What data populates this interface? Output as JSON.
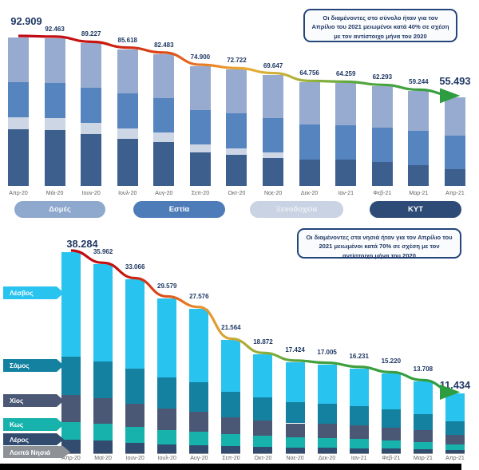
{
  "chart_data": [
    {
      "type": "bar",
      "stacked": true,
      "title": "",
      "annotation": "Οι διαμένοντες στο σύνολο ήταν για τον Απρίλιο του 2021 μειωμένοι κατά 40% σε σχέση με τον αντίστοιχο μήνα του 2020",
      "categories": [
        "Απρ-20",
        "Μάι-20",
        "Ιουν-20",
        "Ιουλ-20",
        "Αυγ-20",
        "Σεπ-20",
        "Οκτ-20",
        "Νοε-20",
        "Δεκ-20",
        "Ιαν-21",
        "Φεβ-21",
        "Μαρ-21",
        "Απρ-21"
      ],
      "totals_display": [
        "92.909",
        "92.463",
        "89.227",
        "85.618",
        "82.483",
        "74.900",
        "72.722",
        "69.647",
        "64.756",
        "64.259",
        "62.293",
        "59.244",
        "55.493"
      ],
      "series": [
        {
          "name": "ΚΥΤ",
          "color": "#3d5f8d",
          "values": [
            35409,
            34963,
            32427,
            29618,
            27283,
            21000,
            19622,
            17647,
            16456,
            16259,
            14993,
            12944,
            10493
          ]
        },
        {
          "name": "Ξενοδοχεία",
          "color": "#cdd6e5",
          "values": [
            7500,
            7500,
            7000,
            6500,
            6000,
            5000,
            4000,
            3500,
            0,
            0,
            0,
            0,
            0
          ]
        },
        {
          "name": "Εστία",
          "color": "#5584bf",
          "values": [
            22000,
            22000,
            21800,
            21700,
            21600,
            21500,
            21800,
            21500,
            21800,
            21700,
            21500,
            21300,
            21000
          ]
        },
        {
          "name": "Δομές",
          "color": "#96abcf",
          "values": [
            28000,
            28000,
            28000,
            27800,
            27600,
            27400,
            27300,
            27000,
            26500,
            26300,
            25800,
            25000,
            24000
          ]
        }
      ],
      "legend": [
        {
          "label": "Δομές",
          "bg": "#8fa8ce",
          "fg": "#f2f6fb"
        },
        {
          "label": "Εστία",
          "bg": "#4e7cb9",
          "fg": "#ffffff"
        },
        {
          "label": "Ξενοδοχεία",
          "bg": "#c9d3e3",
          "fg": "#eef1f7"
        },
        {
          "label": "ΚΥΤ",
          "bg": "#2e4b77",
          "fg": "#ffffff"
        }
      ],
      "legend_position": "bottom",
      "grid": false,
      "trend_line": {
        "start_color": "#be0712",
        "mid_color": "#e98428",
        "end_color": "#2e9c41",
        "arrow": true
      }
    },
    {
      "type": "bar",
      "stacked": true,
      "title": "",
      "annotation": "Οι διαμένοντες στα νησιά ήταν για τον Απρίλιο του 2021 μειωμένοι κατά 70% σε σχέση με τον αντίστοιχο μήνα του 2020",
      "categories": [
        "Απρ-20",
        "Μαϊ-20",
        "Ιουν-20",
        "Ιουλ-20",
        "Αυγ-20",
        "Σεπ-20",
        "Οκτ-20",
        "Νοε-20",
        "Δεκ-20",
        "Ιαν-21",
        "Φεβ-21",
        "Μαρ-21",
        "Απρ-21"
      ],
      "totals_display": [
        "38.284",
        "35.962",
        "33.066",
        "29.579",
        "27.576",
        "21.564",
        "18.872",
        "17.424",
        "17.005",
        "16.231",
        "15.220",
        "13.708",
        "11.434"
      ],
      "series": [
        {
          "name": "Λοιπά Νησιά",
          "color": "#8e9196",
          "values": [
            184,
            162,
            200,
            179,
            176,
            164,
            122,
            124,
            125,
            121,
            120,
            108,
            84
          ]
        },
        {
          "name": "Λέρος",
          "color": "#324c70",
          "values": [
            2600,
            2400,
            1900,
            1600,
            1500,
            1300,
            1250,
            1100,
            1080,
            1010,
            900,
            750,
            600
          ]
        },
        {
          "name": "Κως",
          "color": "#16b2ab",
          "values": [
            3300,
            3200,
            3000,
            2700,
            2600,
            2300,
            2100,
            1900,
            1850,
            1750,
            1600,
            1450,
            1150
          ]
        },
        {
          "name": "Χίος",
          "color": "#4a5875",
          "values": [
            5100,
            4800,
            4500,
            4100,
            3800,
            3200,
            2900,
            2700,
            2650,
            2550,
            2400,
            2200,
            1800
          ]
        },
        {
          "name": "Σάμος",
          "color": "#1581a0",
          "values": [
            7300,
            7000,
            6600,
            6000,
            5600,
            4800,
            4300,
            4000,
            3900,
            3700,
            3500,
            3100,
            2600
          ]
        },
        {
          "name": "Λέσβος",
          "color": "#29c3f0",
          "values": [
            19800,
            18400,
            16866,
            15000,
            13900,
            9800,
            8200,
            7600,
            7400,
            7100,
            6700,
            6100,
            5200
          ]
        }
      ],
      "legend": [
        {
          "label": "Λέσβος",
          "bg": "#29c3f0",
          "fg": "#ffffff"
        },
        {
          "label": "Σάμος",
          "bg": "#1581a0",
          "fg": "#ffffff"
        },
        {
          "label": "Χίος",
          "bg": "#4a5875",
          "fg": "#ffffff"
        },
        {
          "label": "Κως",
          "bg": "#16b2ab",
          "fg": "#ffffff"
        },
        {
          "label": "Λέρος",
          "bg": "#324c70",
          "fg": "#ffffff"
        },
        {
          "label": "Λοιπά Νησιά",
          "bg": "#8e9196",
          "fg": "#ffffff"
        }
      ],
      "legend_position": "left-arrows",
      "grid": false,
      "trend_line": {
        "start_color": "#be0712",
        "mid_color": "#e9932c",
        "end_color": "#2e9c41",
        "arrow": true
      }
    }
  ],
  "label_color": "#1f3864"
}
